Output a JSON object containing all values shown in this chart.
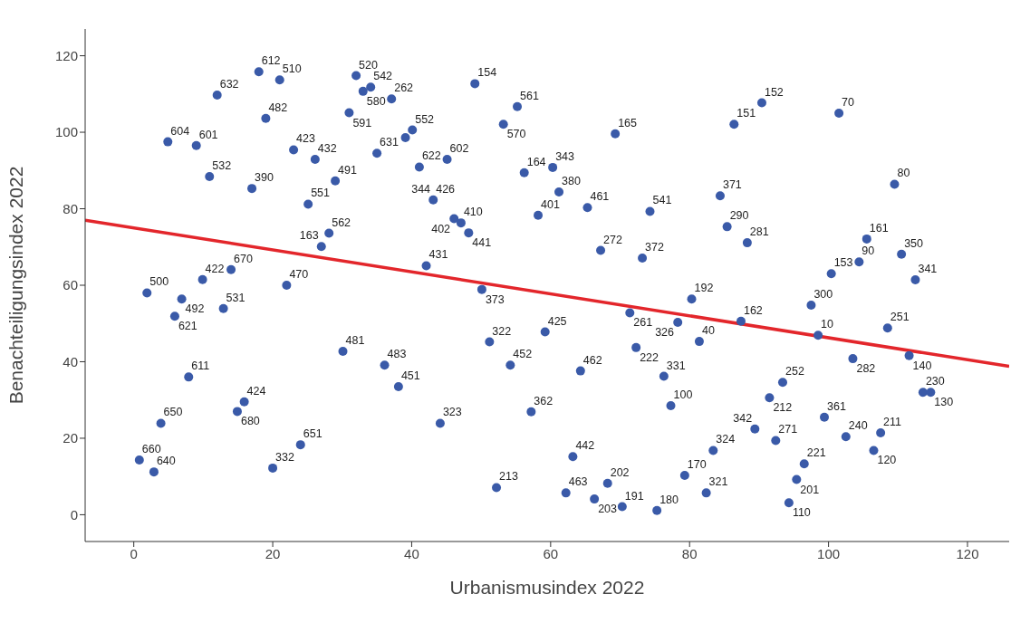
{
  "chart_data": {
    "type": "scatter",
    "xlabel": "Urbanismusindex 2022",
    "ylabel": "Benachteiligungsindex 2022",
    "xlim": [
      -7,
      126
    ],
    "ylim": [
      -7,
      127
    ],
    "xticks": [
      0,
      20,
      40,
      60,
      80,
      100,
      120
    ],
    "yticks": [
      0,
      20,
      40,
      60,
      80,
      100,
      120
    ],
    "series": [
      {
        "type": "scatter",
        "marker": "circle",
        "color": "#3a5aa8",
        "x": [
          18.0,
          21.0,
          12.0,
          32.0,
          34.1,
          33.0,
          37.1,
          19.0,
          4.9,
          9.0,
          31.0,
          40.1,
          39.1,
          23.0,
          26.1,
          35.0,
          41.1,
          45.1,
          10.9,
          17.0,
          29.0,
          25.1,
          43.1,
          28.1,
          27.0,
          14.0,
          22.0,
          9.9,
          1.9,
          6.9,
          5.9,
          12.9,
          7.9,
          15.9,
          14.9,
          3.9,
          0.8,
          2.9,
          24.0,
          20.0,
          30.1,
          36.1,
          38.1,
          49.1,
          55.2,
          53.2,
          69.3,
          56.2,
          60.3,
          61.2,
          65.3,
          74.3,
          58.2,
          47.1,
          46.1,
          48.2,
          42.1,
          50.1,
          67.2,
          73.2,
          71.4,
          78.3,
          80.3,
          51.2,
          59.2,
          72.3,
          81.4,
          54.2,
          64.3,
          76.3,
          77.3,
          44.1,
          57.2,
          63.2,
          52.2,
          62.2,
          66.3,
          68.2,
          70.3,
          75.3,
          79.3,
          82.4,
          90.4,
          101.5,
          86.4,
          109.5,
          84.4,
          85.4,
          88.3,
          105.5,
          110.5,
          104.4,
          100.4,
          112.5,
          97.5,
          87.4,
          98.5,
          108.5,
          103.5,
          111.6,
          93.4,
          91.5,
          113.6,
          114.7,
          99.4,
          89.4,
          92.4,
          102.5,
          107.5,
          106.5,
          83.4,
          96.5,
          95.4,
          94.3
        ],
        "values": [
          115.8,
          113.7,
          109.7,
          114.8,
          111.8,
          110.7,
          108.7,
          103.6,
          97.5,
          96.5,
          105.1,
          100.6,
          98.6,
          95.4,
          92.9,
          94.5,
          90.9,
          92.9,
          88.4,
          85.3,
          87.3,
          81.2,
          82.3,
          73.6,
          70.1,
          64.1,
          60.0,
          61.5,
          58.0,
          56.4,
          51.9,
          53.9,
          36.0,
          29.5,
          27.0,
          23.9,
          14.3,
          11.2,
          18.3,
          12.2,
          42.7,
          39.1,
          33.5,
          112.7,
          106.7,
          102.1,
          99.6,
          89.4,
          90.8,
          84.4,
          80.3,
          79.3,
          78.3,
          76.3,
          77.4,
          73.7,
          65.1,
          58.9,
          69.1,
          67.1,
          52.8,
          50.3,
          56.4,
          45.2,
          47.8,
          43.7,
          45.3,
          39.1,
          37.6,
          36.2,
          28.5,
          23.9,
          26.9,
          15.2,
          7.1,
          5.7,
          4.1,
          8.2,
          2.1,
          1.1,
          10.3,
          5.7,
          107.7,
          105.0,
          102.1,
          86.4,
          83.4,
          75.3,
          71.1,
          72.1,
          68.1,
          66.1,
          63.0,
          61.4,
          54.8,
          50.6,
          46.9,
          48.8,
          40.8,
          41.6,
          34.6,
          30.6,
          32.0,
          32.0,
          25.5,
          22.4,
          19.4,
          20.4,
          21.4,
          16.8,
          16.8,
          13.3,
          9.2,
          3.1
        ]
      },
      {
        "type": "line",
        "color": "#e3262b",
        "x": [
          -7,
          126
        ],
        "values": [
          77.0,
          38.8
        ]
      }
    ],
    "annotations": [
      {
        "text": "612",
        "x": 18.0,
        "y": 115.8
      },
      {
        "text": "510",
        "x": 21.0,
        "y": 113.7
      },
      {
        "text": "632",
        "x": 12.0,
        "y": 109.7
      },
      {
        "text": "520",
        "x": 32.0,
        "y": 114.8
      },
      {
        "text": "542",
        "x": 34.1,
        "y": 111.8
      },
      {
        "text": "580",
        "x": 33.0,
        "y": 110.7
      },
      {
        "text": "262",
        "x": 37.1,
        "y": 108.7
      },
      {
        "text": "482",
        "x": 19.0,
        "y": 103.6
      },
      {
        "text": "604",
        "x": 4.9,
        "y": 97.5
      },
      {
        "text": "601",
        "x": 9.0,
        "y": 96.5
      },
      {
        "text": "591",
        "x": 31.0,
        "y": 105.1
      },
      {
        "text": "552",
        "x": 40.1,
        "y": 100.6
      },
      {
        "text": "423",
        "x": 23.0,
        "y": 95.4
      },
      {
        "text": "432",
        "x": 26.1,
        "y": 92.9
      },
      {
        "text": "631",
        "x": 35.0,
        "y": 94.5
      },
      {
        "text": "622",
        "x": 41.1,
        "y": 90.9
      },
      {
        "text": "602",
        "x": 45.1,
        "y": 92.9
      },
      {
        "text": "532",
        "x": 10.9,
        "y": 88.4
      },
      {
        "text": "390",
        "x": 17.0,
        "y": 85.3
      },
      {
        "text": "491",
        "x": 29.0,
        "y": 87.3
      },
      {
        "text": "551",
        "x": 25.1,
        "y": 81.2
      },
      {
        "text": "426",
        "x": 43.1,
        "y": 82.3
      },
      {
        "text": "344",
        "x": 43.1,
        "y": 82.3
      },
      {
        "text": "562",
        "x": 28.1,
        "y": 73.6
      },
      {
        "text": "163",
        "x": 27.0,
        "y": 70.1
      },
      {
        "text": "670",
        "x": 14.0,
        "y": 64.1
      },
      {
        "text": "470",
        "x": 22.0,
        "y": 60.0
      },
      {
        "text": "422",
        "x": 9.9,
        "y": 61.5
      },
      {
        "text": "500",
        "x": 1.9,
        "y": 58.0
      },
      {
        "text": "492",
        "x": 6.9,
        "y": 56.4
      },
      {
        "text": "621",
        "x": 5.9,
        "y": 51.9
      },
      {
        "text": "531",
        "x": 12.9,
        "y": 53.9
      },
      {
        "text": "611",
        "x": 7.9,
        "y": 36.0
      },
      {
        "text": "424",
        "x": 15.9,
        "y": 29.5
      },
      {
        "text": "680",
        "x": 14.9,
        "y": 27.0
      },
      {
        "text": "650",
        "x": 3.9,
        "y": 23.9
      },
      {
        "text": "660",
        "x": 0.8,
        "y": 14.3
      },
      {
        "text": "640",
        "x": 2.9,
        "y": 11.2
      },
      {
        "text": "651",
        "x": 24.0,
        "y": 18.3
      },
      {
        "text": "332",
        "x": 20.0,
        "y": 12.2
      },
      {
        "text": "481",
        "x": 30.1,
        "y": 42.7
      },
      {
        "text": "483",
        "x": 36.1,
        "y": 39.1
      },
      {
        "text": "451",
        "x": 38.1,
        "y": 33.5
      },
      {
        "text": "154",
        "x": 49.1,
        "y": 112.7
      },
      {
        "text": "561",
        "x": 55.2,
        "y": 106.7
      },
      {
        "text": "570",
        "x": 53.2,
        "y": 102.1
      },
      {
        "text": "165",
        "x": 69.3,
        "y": 99.6
      },
      {
        "text": "164",
        "x": 56.2,
        "y": 89.4
      },
      {
        "text": "343",
        "x": 60.3,
        "y": 90.8
      },
      {
        "text": "380",
        "x": 61.2,
        "y": 84.4
      },
      {
        "text": "461",
        "x": 65.3,
        "y": 80.3
      },
      {
        "text": "541",
        "x": 74.3,
        "y": 79.3
      },
      {
        "text": "401",
        "x": 58.2,
        "y": 78.3
      },
      {
        "text": "410",
        "x": 47.1,
        "y": 76.3
      },
      {
        "text": "402",
        "x": 46.1,
        "y": 77.4
      },
      {
        "text": "441",
        "x": 48.2,
        "y": 73.7
      },
      {
        "text": "431",
        "x": 42.1,
        "y": 65.1
      },
      {
        "text": "373",
        "x": 50.1,
        "y": 58.9
      },
      {
        "text": "272",
        "x": 67.2,
        "y": 69.1
      },
      {
        "text": "372",
        "x": 73.2,
        "y": 67.1
      },
      {
        "text": "261",
        "x": 71.4,
        "y": 52.8
      },
      {
        "text": "326",
        "x": 78.3,
        "y": 50.3
      },
      {
        "text": "192",
        "x": 80.3,
        "y": 56.4
      },
      {
        "text": "322",
        "x": 51.2,
        "y": 45.2
      },
      {
        "text": "425",
        "x": 59.2,
        "y": 47.8
      },
      {
        "text": "222",
        "x": 72.3,
        "y": 43.7
      },
      {
        "text": "40",
        "x": 81.4,
        "y": 45.3
      },
      {
        "text": "452",
        "x": 54.2,
        "y": 39.1
      },
      {
        "text": "462",
        "x": 64.3,
        "y": 37.6
      },
      {
        "text": "331",
        "x": 76.3,
        "y": 36.2
      },
      {
        "text": "100",
        "x": 77.3,
        "y": 28.5
      },
      {
        "text": "323",
        "x": 44.1,
        "y": 23.9
      },
      {
        "text": "362",
        "x": 57.2,
        "y": 26.9
      },
      {
        "text": "442",
        "x": 63.2,
        "y": 15.2
      },
      {
        "text": "213",
        "x": 52.2,
        "y": 7.1
      },
      {
        "text": "463",
        "x": 62.2,
        "y": 5.7
      },
      {
        "text": "203",
        "x": 66.3,
        "y": 4.1
      },
      {
        "text": "202",
        "x": 68.2,
        "y": 8.2
      },
      {
        "text": "191",
        "x": 70.3,
        "y": 2.1
      },
      {
        "text": "180",
        "x": 75.3,
        "y": 1.1
      },
      {
        "text": "170",
        "x": 79.3,
        "y": 10.3
      },
      {
        "text": "321",
        "x": 82.4,
        "y": 5.7
      },
      {
        "text": "152",
        "x": 90.4,
        "y": 107.7
      },
      {
        "text": "70",
        "x": 101.5,
        "y": 105.0
      },
      {
        "text": "151",
        "x": 86.4,
        "y": 102.1
      },
      {
        "text": "80",
        "x": 109.5,
        "y": 86.4
      },
      {
        "text": "371",
        "x": 84.4,
        "y": 83.4
      },
      {
        "text": "290",
        "x": 85.4,
        "y": 75.3
      },
      {
        "text": "281",
        "x": 88.3,
        "y": 71.1
      },
      {
        "text": "161",
        "x": 105.5,
        "y": 72.1
      },
      {
        "text": "350",
        "x": 110.5,
        "y": 68.1
      },
      {
        "text": "90",
        "x": 104.4,
        "y": 66.1
      },
      {
        "text": "153",
        "x": 100.4,
        "y": 63.0
      },
      {
        "text": "341",
        "x": 112.5,
        "y": 61.4
      },
      {
        "text": "300",
        "x": 97.5,
        "y": 54.8
      },
      {
        "text": "162",
        "x": 87.4,
        "y": 50.6
      },
      {
        "text": "10",
        "x": 98.5,
        "y": 46.9
      },
      {
        "text": "251",
        "x": 108.5,
        "y": 48.8
      },
      {
        "text": "282",
        "x": 103.5,
        "y": 40.8
      },
      {
        "text": "140",
        "x": 111.6,
        "y": 41.6
      },
      {
        "text": "252",
        "x": 93.4,
        "y": 34.6
      },
      {
        "text": "212",
        "x": 91.5,
        "y": 30.6
      },
      {
        "text": "230",
        "x": 113.6,
        "y": 32.0
      },
      {
        "text": "130",
        "x": 114.7,
        "y": 32.0
      },
      {
        "text": "361",
        "x": 99.4,
        "y": 25.5
      },
      {
        "text": "342",
        "x": 89.4,
        "y": 22.4
      },
      {
        "text": "271",
        "x": 92.4,
        "y": 19.4
      },
      {
        "text": "240",
        "x": 102.5,
        "y": 20.4
      },
      {
        "text": "211",
        "x": 107.5,
        "y": 21.4
      },
      {
        "text": "120",
        "x": 106.5,
        "y": 16.8
      },
      {
        "text": "324",
        "x": 83.4,
        "y": 16.8
      },
      {
        "text": "221",
        "x": 96.5,
        "y": 13.3
      },
      {
        "text": "201",
        "x": 95.4,
        "y": 9.2
      },
      {
        "text": "110",
        "x": 94.3,
        "y": 3.1
      }
    ]
  }
}
